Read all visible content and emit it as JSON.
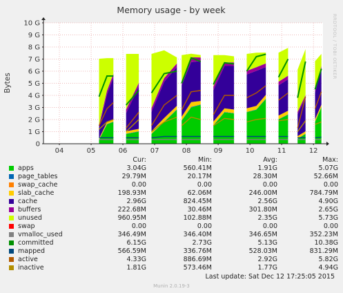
{
  "side_text": "RRDTOOL / TOBI OETIKER",
  "footer": {
    "last_update": "Last update:  Sat Dec 12 17:25:05 2015",
    "version": "Munin 2.0.19-3"
  },
  "legend_headers": {
    "cur": "Cur:",
    "min": "Min:",
    "avg": "Avg:",
    "max": "Max:"
  },
  "legend": [
    {
      "name": "apps",
      "color": "#00cc00",
      "cur": "3.04G",
      "min": "560.41M",
      "avg": "1.91G",
      "max": "5.07G"
    },
    {
      "name": "page_tables",
      "color": "#0066b3",
      "cur": "29.79M",
      "min": "20.17M",
      "avg": "28.30M",
      "max": "52.66M"
    },
    {
      "name": "swap_cache",
      "color": "#ff8000",
      "cur": "0.00",
      "min": "0.00",
      "avg": "0.00",
      "max": "0.00"
    },
    {
      "name": "slab_cache",
      "color": "#ffcc00",
      "cur": "198.93M",
      "min": "62.06M",
      "avg": "246.00M",
      "max": "784.79M"
    },
    {
      "name": "cache",
      "color": "#330099",
      "cur": "2.96G",
      "min": "824.45M",
      "avg": "2.56G",
      "max": "4.90G"
    },
    {
      "name": "buffers",
      "color": "#990099",
      "cur": "222.68M",
      "min": "30.46M",
      "avg": "301.80M",
      "max": "2.65G"
    },
    {
      "name": "unused",
      "color": "#ccff00",
      "cur": "960.95M",
      "min": "102.88M",
      "avg": "2.35G",
      "max": "5.73G"
    },
    {
      "name": "swap",
      "color": "#ff0000",
      "cur": "0.00",
      "min": "0.00",
      "avg": "0.00",
      "max": "0.00"
    },
    {
      "name": "vmalloc_used",
      "color": "#808080",
      "cur": "346.49M",
      "min": "346.40M",
      "avg": "346.65M",
      "max": "352.23M"
    },
    {
      "name": "committed",
      "color": "#008f00",
      "cur": "6.15G",
      "min": "2.73G",
      "avg": "5.13G",
      "max": "10.38G"
    },
    {
      "name": "mapped",
      "color": "#00487d",
      "cur": "566.59M",
      "min": "336.76M",
      "avg": "528.03M",
      "max": "831.29M"
    },
    {
      "name": "active",
      "color": "#b35a00",
      "cur": "4.33G",
      "min": "886.69M",
      "avg": "2.92G",
      "max": "5.82G"
    },
    {
      "name": "inactive",
      "color": "#b38f00",
      "cur": "1.81G",
      "min": "573.46M",
      "avg": "1.77G",
      "max": "4.94G"
    }
  ],
  "chart_data": {
    "type": "area",
    "title": "Memory usage - by week",
    "ylabel": "Bytes",
    "xlabel": "",
    "ylim": [
      0,
      10
    ],
    "y_unit": "G",
    "yticks": [
      "0",
      "1 G",
      "2 G",
      "3 G",
      "4 G",
      "5 G",
      "6 G",
      "7 G",
      "8 G",
      "9 G",
      "10 G"
    ],
    "x_range_days": [
      3.5,
      12.3
    ],
    "xticks": [
      {
        "day": 4,
        "label": "04"
      },
      {
        "day": 5,
        "label": "05"
      },
      {
        "day": 6,
        "label": "06"
      },
      {
        "day": 7,
        "label": "07"
      },
      {
        "day": 8,
        "label": "08"
      },
      {
        "day": 9,
        "label": "09"
      },
      {
        "day": 10,
        "label": "10"
      },
      {
        "day": 11,
        "label": "11"
      },
      {
        "day": 12,
        "label": "12"
      }
    ],
    "colors": {
      "apps": "#00cc00",
      "page_tables": "#0066b3",
      "slab_cache": "#ffcc00",
      "cache": "#330099",
      "buffers": "#990099",
      "unused": "#ccff00",
      "committed": "#008f00",
      "mapped": "#00487d",
      "active": "#b35a00",
      "inactive": "#b38f00",
      "vmalloc_used": "#808080"
    },
    "stack_order": [
      "apps",
      "page_tables",
      "slab_cache",
      "cache",
      "buffers",
      "unused"
    ],
    "line_series": [
      "committed",
      "active",
      "inactive",
      "mapped",
      "vmalloc_used"
    ],
    "segments": [
      {
        "x": [
          5.25,
          5.5,
          5.7
        ],
        "apps": [
          0.3,
          1.6,
          1.8
        ],
        "page_tables": [
          0.03,
          0.03,
          0.03
        ],
        "slab_cache": [
          0.1,
          0.15,
          0.15
        ],
        "cache": [
          0.9,
          2.3,
          3.5
        ],
        "buffers": [
          0.2,
          0.3,
          0.3
        ],
        "unused": [
          5.5,
          2.7,
          1.3
        ],
        "committed": [
          3.9,
          5.6,
          5.6
        ],
        "active": [
          1.5,
          2.9,
          3.4
        ],
        "inactive": [
          1.2,
          1.8,
          2.0
        ],
        "mapped": [
          0.5,
          0.5,
          0.5
        ],
        "vmalloc_used": [
          0.35,
          0.35,
          0.35
        ]
      },
      {
        "x": [
          6.1,
          6.5
        ],
        "apps": [
          0.8,
          1.0
        ],
        "page_tables": [
          0.03,
          0.03
        ],
        "slab_cache": [
          0.2,
          0.2
        ],
        "cache": [
          1.5,
          3.5
        ],
        "buffers": [
          0.3,
          0.3
        ],
        "unused": [
          4.6,
          2.4
        ],
        "committed": [
          3.2,
          4.4
        ],
        "active": [
          1.3,
          2.6
        ],
        "inactive": [
          1.0,
          2.0
        ],
        "mapped": [
          0.5,
          0.5
        ],
        "vmalloc_used": [
          0.35,
          0.35
        ]
      },
      {
        "x": [
          6.9,
          7.3,
          7.7
        ],
        "apps": [
          0.8,
          1.8,
          2.8
        ],
        "page_tables": [
          0.03,
          0.03,
          0.04
        ],
        "slab_cache": [
          0.2,
          0.3,
          0.3
        ],
        "cache": [
          1.6,
          3.0,
          3.2
        ],
        "buffers": [
          0.3,
          0.3,
          0.3
        ],
        "unused": [
          4.5,
          2.3,
          0.5
        ],
        "committed": [
          4.2,
          5.8,
          6.0
        ],
        "active": [
          1.5,
          3.2,
          4.0
        ],
        "inactive": [
          1.0,
          1.8,
          2.2
        ],
        "mapped": [
          0.5,
          0.6,
          0.6
        ],
        "vmalloc_used": [
          0.35,
          0.35,
          0.35
        ]
      },
      {
        "x": [
          7.85,
          8.15,
          8.45
        ],
        "apps": [
          1.9,
          3.0,
          3.2
        ],
        "page_tables": [
          0.03,
          0.04,
          0.04
        ],
        "slab_cache": [
          0.3,
          0.4,
          0.3
        ],
        "cache": [
          2.6,
          3.3,
          3.3
        ],
        "buffers": [
          0.3,
          0.4,
          0.3
        ],
        "unused": [
          2.2,
          0.3,
          0.2
        ],
        "committed": [
          5.0,
          7.1,
          6.8
        ],
        "active": [
          2.8,
          4.3,
          4.4
        ],
        "inactive": [
          1.5,
          2.2,
          2.0
        ],
        "mapped": [
          0.6,
          0.6,
          0.6
        ],
        "vmalloc_used": [
          0.35,
          0.35,
          0.35
        ]
      },
      {
        "x": [
          8.85,
          9.2,
          9.5
        ],
        "apps": [
          1.5,
          2.6,
          2.5
        ],
        "page_tables": [
          0.03,
          0.03,
          0.03
        ],
        "slab_cache": [
          0.3,
          0.3,
          0.3
        ],
        "cache": [
          2.6,
          3.5,
          3.6
        ],
        "buffers": [
          0.3,
          0.3,
          0.3
        ],
        "unused": [
          2.6,
          0.6,
          0.5
        ],
        "committed": [
          4.9,
          6.7,
          6.6
        ],
        "active": [
          2.4,
          4.0,
          4.0
        ],
        "inactive": [
          1.5,
          2.1,
          2.0
        ],
        "mapped": [
          0.6,
          0.6,
          0.6
        ],
        "vmalloc_used": [
          0.35,
          0.35,
          0.35
        ]
      },
      {
        "x": [
          9.9,
          10.2,
          10.5
        ],
        "apps": [
          2.6,
          2.8,
          3.7
        ],
        "page_tables": [
          0.03,
          0.03,
          0.04
        ],
        "slab_cache": [
          0.3,
          0.3,
          0.3
        ],
        "cache": [
          2.8,
          2.9,
          2.3
        ],
        "buffers": [
          0.3,
          0.3,
          0.3
        ],
        "unused": [
          1.4,
          1.2,
          0.9
        ],
        "committed": [
          6.0,
          7.2,
          7.4
        ],
        "active": [
          3.8,
          4.2,
          4.8
        ],
        "inactive": [
          1.8,
          2.0,
          2.1
        ],
        "mapped": [
          0.6,
          0.6,
          0.6
        ],
        "vmalloc_used": [
          0.35,
          0.35,
          0.35
        ]
      },
      {
        "x": [
          10.9,
          11.2
        ],
        "apps": [
          2.0,
          2.4
        ],
        "page_tables": [
          0.03,
          0.03
        ],
        "slab_cache": [
          0.3,
          0.3
        ],
        "cache": [
          2.5,
          2.6
        ],
        "buffers": [
          0.3,
          0.3
        ],
        "unused": [
          2.4,
          2.3
        ],
        "committed": [
          5.5,
          7.0
        ],
        "active": [
          3.6,
          4.2
        ],
        "inactive": [
          1.9,
          2.0
        ],
        "mapped": [
          0.6,
          0.6
        ],
        "vmalloc_used": [
          0.35,
          0.35
        ]
      },
      {
        "x": [
          11.5,
          11.75
        ],
        "apps": [
          0.4,
          0.8
        ],
        "page_tables": [
          0.03,
          0.03
        ],
        "slab_cache": [
          0.2,
          0.2
        ],
        "cache": [
          1.8,
          2.8
        ],
        "buffers": [
          0.2,
          0.2
        ],
        "unused": [
          3.5,
          3.8
        ],
        "committed": [
          3.8,
          6.8
        ],
        "active": [
          1.3,
          3.9
        ],
        "inactive": [
          1.0,
          1.9
        ],
        "mapped": [
          0.5,
          0.5
        ],
        "vmalloc_used": [
          0.35,
          0.35
        ]
      },
      {
        "x": [
          12.05,
          12.25
        ],
        "apps": [
          1.8,
          3.0
        ],
        "page_tables": [
          0.03,
          0.03
        ],
        "slab_cache": [
          0.2,
          0.2
        ],
        "cache": [
          2.2,
          3.0
        ],
        "buffers": [
          0.3,
          0.2
        ],
        "unused": [
          2.3,
          1.0
        ],
        "committed": [
          4.5,
          6.2
        ],
        "active": [
          2.9,
          4.3
        ],
        "inactive": [
          1.6,
          1.8
        ],
        "mapped": [
          0.5,
          0.55
        ],
        "vmalloc_used": [
          0.35,
          0.35
        ]
      }
    ]
  }
}
